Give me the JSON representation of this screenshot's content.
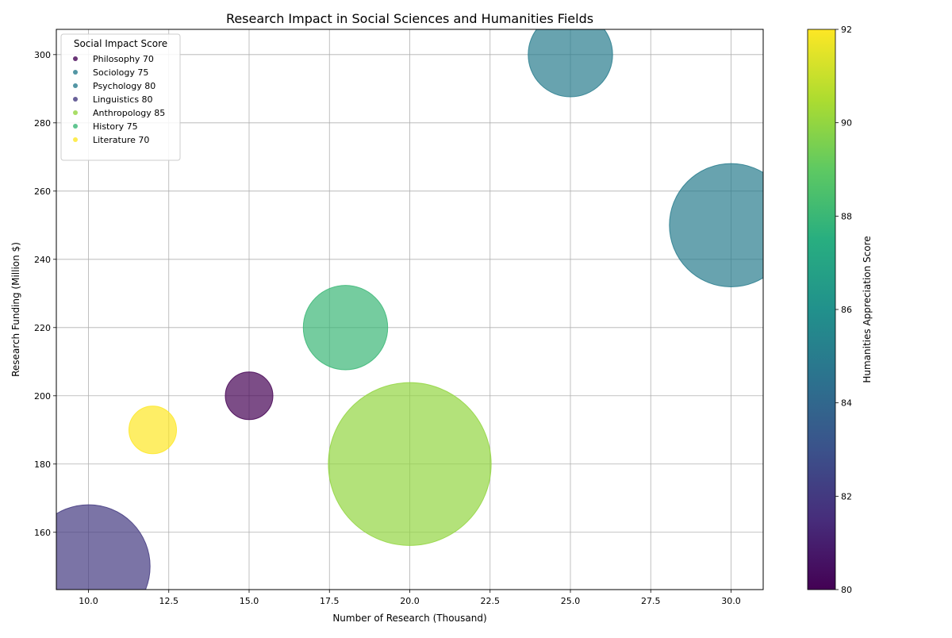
{
  "chart_data": {
    "type": "scatter",
    "title": "Research Impact in Social Sciences and Humanities Fields",
    "xlabel": "Number of Research (Thousand)",
    "ylabel": "Research Funding (Million $)",
    "xlim": [
      9.0,
      31.0
    ],
    "ylim": [
      143.2,
      307.4
    ],
    "xticks": [
      "10.0",
      "12.5",
      "15.0",
      "17.5",
      "20.0",
      "22.5",
      "25.0",
      "27.5",
      "30.0"
    ],
    "yticks": [
      "160",
      "180",
      "200",
      "220",
      "240",
      "260",
      "280",
      "300"
    ],
    "grid": true,
    "legend": {
      "title": "Social Impact Score",
      "placement": "top-left"
    },
    "colorbar": {
      "label": "Humanities Appreciation Score",
      "range": [
        80,
        92
      ],
      "ticks": [
        "80",
        "82",
        "84",
        "86",
        "88",
        "90",
        "92"
      ],
      "colormap": "viridis"
    },
    "points": [
      {
        "field": "Philosophy",
        "label": "Philosophy 70",
        "x": 15,
        "y": 200,
        "social_impact": 70,
        "humanities_appreciation": 80
      },
      {
        "field": "Sociology",
        "label": "Sociology 75",
        "x": 25,
        "y": 300,
        "social_impact": 75,
        "humanities_appreciation": 85
      },
      {
        "field": "Psychology",
        "label": "Psychology 80",
        "x": 30,
        "y": 250,
        "social_impact": 80,
        "humanities_appreciation": 85
      },
      {
        "field": "Linguistics",
        "label": "Linguistics 80",
        "x": 10,
        "y": 150,
        "social_impact": 80,
        "humanities_appreciation": 82
      },
      {
        "field": "Anthropology",
        "label": "Anthropology 85",
        "x": 20,
        "y": 180,
        "social_impact": 85,
        "humanities_appreciation": 90
      },
      {
        "field": "History",
        "label": "History 75",
        "x": 18,
        "y": 220,
        "social_impact": 75,
        "humanities_appreciation": 88
      },
      {
        "field": "Literature",
        "label": "Literature 70",
        "x": 12,
        "y": 190,
        "social_impact": 70,
        "humanities_appreciation": 92
      }
    ]
  }
}
